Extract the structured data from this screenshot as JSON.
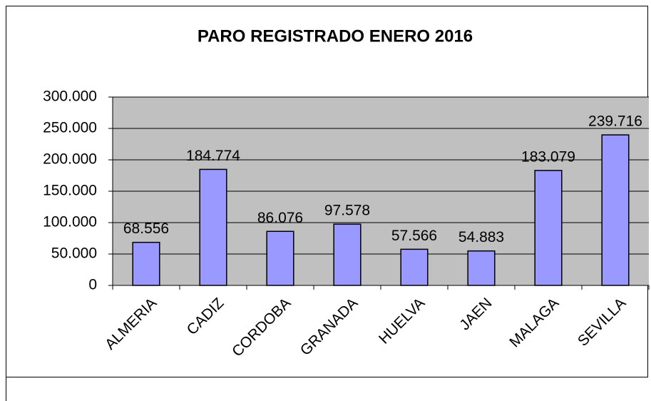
{
  "chart_data": {
    "type": "bar",
    "title": "PARO REGISTRADO ENERO 2016",
    "categories": [
      "ALMERIA",
      "CADIZ",
      "CORDOBA",
      "GRANADA",
      "HUELVA",
      "JAEN",
      "MALAGA",
      "SEVILLA"
    ],
    "values": [
      68556,
      184774,
      86076,
      97578,
      57566,
      54883,
      183079,
      239716
    ],
    "value_labels": [
      "68.556",
      "184.774",
      "86.076",
      "97.578",
      "57.566",
      "54.883",
      "183.079",
      "239.716"
    ],
    "color": "#9999ff",
    "ylim": [
      0,
      300000
    ],
    "yticks": [
      0,
      {
        "value": 50000,
        "label": "50.000"
      },
      {
        "value": 100000,
        "label": "100.000"
      },
      {
        "value": 150000,
        "label": "150.000"
      },
      {
        "value": 200000,
        "label": "200.000"
      },
      {
        "value": 250000,
        "label": "250.000"
      },
      {
        "value": 300000,
        "label": "300.000"
      }
    ],
    "grid": true
  }
}
